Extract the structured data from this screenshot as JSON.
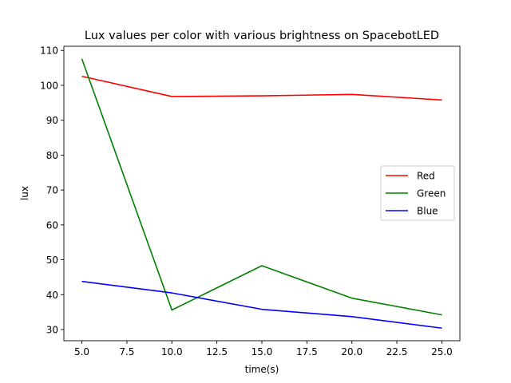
{
  "chart_data": {
    "type": "line",
    "title": "Lux values per color with various brightness on SpacebotLED",
    "xlabel": "time(s)",
    "ylabel": "lux",
    "x": [
      5,
      10,
      15,
      20,
      25
    ],
    "xlim": [
      4,
      26
    ],
    "ylim": [
      26.8,
      111.2
    ],
    "xticks": [
      "5.0",
      "7.5",
      "10.0",
      "12.5",
      "15.0",
      "17.5",
      "20.0",
      "22.5",
      "25.0"
    ],
    "yticks": [
      "30",
      "40",
      "50",
      "60",
      "70",
      "80",
      "90",
      "100",
      "110"
    ],
    "legend_position": "center-right",
    "grid": false,
    "series": [
      {
        "name": "Red",
        "color": "#ff0000",
        "values": [
          102.6,
          96.8,
          97.0,
          97.4,
          95.8
        ]
      },
      {
        "name": "Green",
        "color": "#008000",
        "values": [
          107.6,
          35.6,
          48.3,
          39.0,
          34.2
        ]
      },
      {
        "name": "Blue",
        "color": "#0000ff",
        "values": [
          43.8,
          40.5,
          35.8,
          33.7,
          30.4
        ]
      }
    ]
  }
}
